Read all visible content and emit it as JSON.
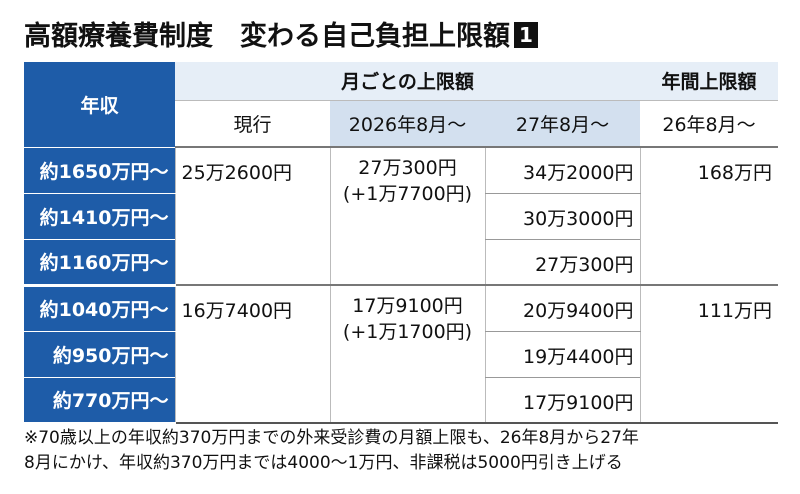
{
  "header": {
    "title": "高額療養費制度　変わる自己負担上限額",
    "badge": "1"
  },
  "table": {
    "header": {
      "income": "年収",
      "monthly": "月ごとの上限額",
      "annual": "年間上限額",
      "columns": [
        "現行",
        "2026年8月〜",
        "27年8月〜",
        "26年8月〜"
      ]
    },
    "groups": [
      {
        "incomes": [
          "約1650万円〜",
          "約1410万円〜",
          "約1160万円〜"
        ],
        "current": "25万2600円",
        "from2026": [
          "27万300円",
          "(+1万7700円)"
        ],
        "from27": [
          "34万2000円",
          "30万3000円",
          "27万300円"
        ],
        "annual": "168万円"
      },
      {
        "incomes": [
          "約1040万円〜",
          "約950万円〜",
          "約770万円〜"
        ],
        "current": "16万7400円",
        "from2026": [
          "17万9100円",
          "(+1万1700円)"
        ],
        "from27": [
          "20万9400円",
          "19万4400円",
          "17万9100円"
        ],
        "annual": "111万円"
      }
    ]
  },
  "footnote": [
    "※70歳以上の年収約370万円までの外来受診費の月額上限も、26年8月から27年",
    "8月にかけ、年収約370万円までは4000〜1万円、非課税は5000円引き上げる"
  ]
}
